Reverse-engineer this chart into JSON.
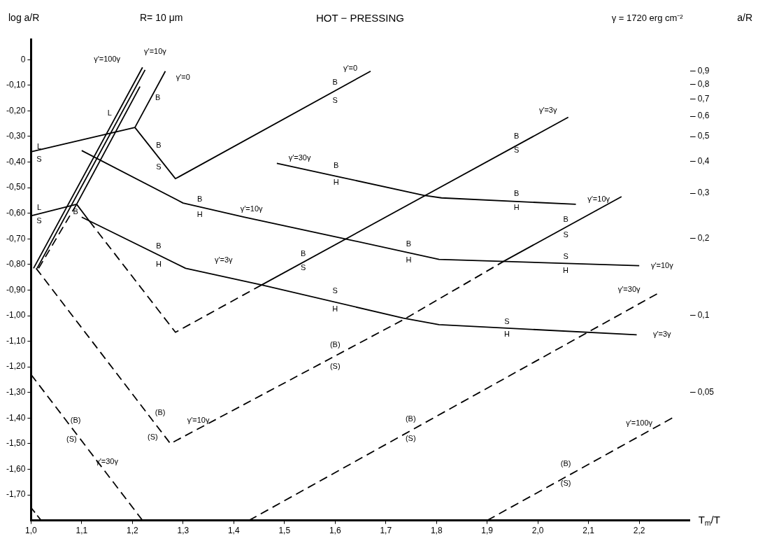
{
  "chart_data": {
    "type": "line",
    "title": "HOT − PRESSING",
    "ylabel": "log a/R",
    "y2label": "a/R",
    "xlabel": "T$_{m}$/T",
    "xlim": [
      1.0,
      2.3
    ],
    "ylim": [
      -1.8,
      0.08
    ],
    "y2lim": [
      0.0158,
      1.2
    ],
    "log": "y2",
    "xticks": [
      {
        "value": 1.0,
        "label": "1,0"
      },
      {
        "value": 1.1,
        "label": "1,1"
      },
      {
        "value": 1.2,
        "label": "1,2"
      },
      {
        "value": 1.3,
        "label": "1,3"
      },
      {
        "value": 1.4,
        "label": "1,4"
      },
      {
        "value": 1.5,
        "label": "1,5"
      },
      {
        "value": 1.6,
        "label": "1,6"
      },
      {
        "value": 1.7,
        "label": "1,7"
      },
      {
        "value": 1.8,
        "label": "1,8"
      },
      {
        "value": 1.9,
        "label": "1,9"
      },
      {
        "value": 2.0,
        "label": "2,0"
      },
      {
        "value": 2.1,
        "label": "2,1"
      },
      {
        "value": 2.2,
        "label": "2,2"
      }
    ],
    "yticks": [
      0,
      {
        "value": -0.1,
        "label": "-0,10"
      },
      {
        "value": -0.2,
        "label": "-0,20"
      },
      {
        "value": -0.3,
        "label": "-0,30"
      },
      {
        "value": -0.4,
        "label": "-0,40"
      },
      {
        "value": -0.5,
        "label": "-0,50"
      },
      {
        "value": -0.6,
        "label": "-0,60"
      },
      {
        "value": -0.7,
        "label": "-0,70"
      },
      {
        "value": -0.8,
        "label": "-0,80"
      },
      {
        "value": -0.9,
        "label": "-0,90"
      },
      {
        "value": -1.0,
        "label": "-1,00"
      },
      {
        "value": -1.1,
        "label": "-1,10"
      },
      {
        "value": -1.2,
        "label": "-1,20"
      },
      {
        "value": -1.3,
        "label": "-1,30"
      },
      {
        "value": -1.4,
        "label": "-1,40"
      },
      {
        "value": -1.5,
        "label": "-1,50"
      },
      {
        "value": -1.6,
        "label": "-1,60"
      },
      {
        "value": -1.7,
        "label": "-1,70"
      }
    ],
    "y2ticks": [
      {
        "value": 0.05,
        "label": "0,05"
      },
      {
        "value": 0.1,
        "label": "0,1"
      },
      {
        "value": 0.2,
        "label": "0,2"
      },
      {
        "value": 0.3,
        "label": "0,3"
      },
      {
        "value": 0.4,
        "label": "0,4"
      },
      {
        "value": 0.5,
        "label": "0,5"
      },
      {
        "value": 0.6,
        "label": "0,6"
      },
      {
        "value": 0.7,
        "label": "0,7"
      },
      {
        "value": 0.8,
        "label": "0,8"
      },
      {
        "value": 0.9,
        "label": "0,9"
      }
    ],
    "grid": false,
    "legend": false,
    "series": [
      {
        "type": "line",
        "color": "#000000",
        "line_style": "solid",
        "x": [
          1.0,
          1.205,
          1.265
        ],
        "values": [
          -0.36,
          -0.265,
          -0.045
        ]
      },
      {
        "type": "line",
        "color": "#000000",
        "line_style": "solid",
        "x": [
          1.205,
          1.285,
          1.67
        ],
        "values": [
          -0.265,
          -0.465,
          -0.045
        ]
      },
      {
        "type": "line",
        "color": "#000000",
        "line_style": "solid",
        "x": [
          1.0,
          1.09,
          1.115
        ],
        "values": [
          -0.61,
          -0.565,
          -0.63
        ]
      },
      {
        "type": "line",
        "color": "#000000",
        "line_style": "solid",
        "x": [
          1.1,
          1.305,
          1.455,
          1.735,
          1.805,
          2.195
        ],
        "values": [
          -0.615,
          -0.815,
          -0.88,
          -1.01,
          -1.035,
          -1.075
        ]
      },
      {
        "type": "line",
        "color": "#000000",
        "line_style": "solid",
        "x": [
          1.1,
          1.3,
          1.42,
          1.62,
          1.805,
          2.2
        ],
        "values": [
          -0.355,
          -0.56,
          -0.615,
          -0.7,
          -0.78,
          -0.805
        ]
      },
      {
        "type": "line",
        "color": "#000000",
        "line_style": "solid",
        "x": [
          1.485,
          1.775,
          1.81,
          2.075
        ],
        "values": [
          -0.405,
          -0.53,
          -0.54,
          -0.565
        ]
      },
      {
        "type": "line",
        "color": "#000000",
        "line_style": "dashed",
        "x": [
          1.115,
          1.285,
          1.455
        ],
        "values": [
          -0.63,
          -1.065,
          -0.88
        ]
      },
      {
        "type": "line",
        "color": "#000000",
        "line_style": "solid",
        "x": [
          1.455,
          2.06
        ],
        "values": [
          -0.88,
          -0.225
        ]
      },
      {
        "type": "line",
        "color": "#000000",
        "line_style": "dashed",
        "x": [
          1.01,
          1.275,
          1.74,
          1.935
        ],
        "values": [
          -0.815,
          -1.5,
          -1.01,
          -0.785
        ]
      },
      {
        "type": "line",
        "color": "#000000",
        "line_style": "solid",
        "x": [
          1.935,
          2.165
        ],
        "values": [
          -0.785,
          -0.535
        ]
      },
      {
        "type": "line",
        "color": "#000000",
        "line_style": "dashed",
        "x": [
          1.0,
          1.22
        ],
        "values": [
          -1.23,
          -1.8
        ]
      },
      {
        "type": "line",
        "color": "#000000",
        "line_style": "dashed",
        "x": [
          1.43,
          2.235
        ],
        "values": [
          -1.8,
          -0.915
        ]
      },
      {
        "type": "line",
        "color": "#000000",
        "line_style": "dashed",
        "x": [
          1.0,
          1.02
        ],
        "values": [
          -1.75,
          -1.8
        ]
      },
      {
        "type": "line",
        "color": "#000000",
        "line_style": "dashed",
        "x": [
          1.9,
          2.265
        ],
        "values": [
          -1.8,
          -1.4
        ]
      },
      {
        "type": "line",
        "color": "#000000",
        "line_style": "solid",
        "x": [
          1.005,
          1.22
        ],
        "values": [
          -0.815,
          -0.03
        ]
      },
      {
        "type": "line",
        "color": "#000000",
        "line_style": "solid",
        "x": [
          1.012,
          1.225
        ],
        "values": [
          -0.815,
          -0.04
        ]
      },
      {
        "type": "line",
        "color": "#000000",
        "line_style": "dashed",
        "x": [
          1.015,
          1.09
        ],
        "values": [
          -0.815,
          -0.565
        ]
      },
      {
        "type": "line",
        "color": "#000000",
        "line_style": "solid",
        "x": [
          1.09,
          1.215
        ],
        "values": [
          -0.565,
          -0.105
        ]
      }
    ],
    "annotations": [
      "R= 10 μm",
      "γ = 1720 erg cm⁻²",
      "L",
      "S",
      "L",
      "S",
      "L",
      "γ′=100γ",
      "γ′=10γ",
      "γ′=0",
      "B",
      "B",
      "S",
      "B",
      "B",
      "H",
      "γ′=10γ",
      "B",
      "H",
      "γ′=3γ",
      "γ′=0",
      "B",
      "S",
      "γ′=30γ",
      "B",
      "H",
      "B",
      "H",
      "B",
      "S",
      "γ′=3γ",
      "B",
      "S",
      "B",
      "H",
      "γ′=10γ",
      "B",
      "S",
      "S",
      "H",
      "γ′=10γ",
      "S",
      "H",
      "(B)",
      "(S)",
      "S",
      "H",
      "γ′=3γ",
      "γ′=30γ",
      "(B)",
      "(S)",
      "γ′=100γ",
      "(B)",
      "(S)",
      "(B)",
      "(S)",
      "γ′=30γ",
      "(B)",
      "(S)",
      "γ′=10γ"
    ]
  }
}
